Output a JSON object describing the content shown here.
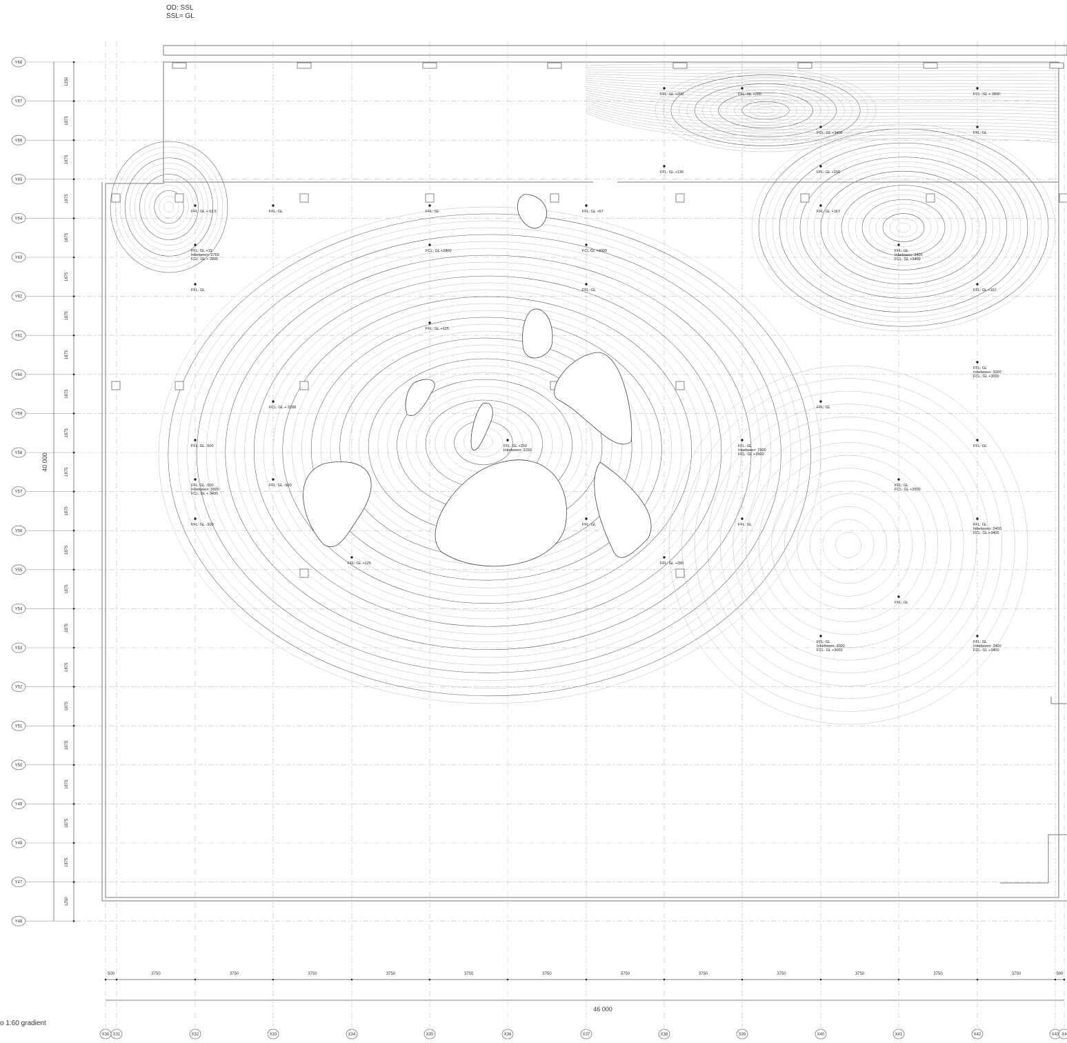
{
  "notes": {
    "line1": "OD: SSL",
    "line2": "SSL= GL"
  },
  "footnote": "o 1:60 gradient",
  "axes": {
    "y_labels": [
      "Y68",
      "Y67",
      "Y66",
      "Y65",
      "Y64",
      "Y63",
      "Y62",
      "Y61",
      "Y60",
      "Y59",
      "Y58",
      "Y57",
      "Y56",
      "Y55",
      "Y54",
      "Y53",
      "Y52",
      "Y51",
      "Y50",
      "Y49",
      "Y48",
      "Y47",
      "Y46"
    ],
    "x_labels": [
      "X30",
      "X31",
      "X32",
      "X33",
      "X34",
      "X35",
      "X36",
      "X37",
      "X38",
      "X39",
      "X40",
      "X41",
      "X42",
      "X43",
      "X4"
    ]
  },
  "dimensions": {
    "vertical_segments": [
      "1250",
      "1875",
      "1875",
      "1875",
      "1875",
      "1875",
      "1875",
      "1875",
      "1875",
      "1875",
      "1875",
      "1875",
      "1875",
      "1875",
      "1875",
      "1875",
      "1875",
      "1875",
      "1875",
      "1875",
      "1875",
      "1250"
    ],
    "vertical_total": "40 000",
    "horizontal_segments": [
      "500",
      "3750",
      "3750",
      "3750",
      "3750",
      "3750",
      "3750",
      "3750",
      "3750",
      "3750",
      "3750",
      "3750",
      "3750",
      "500"
    ],
    "horizontal_total": "46 000"
  },
  "annotations": [
    {
      "lines": [
        "FFL: GL +200"
      ]
    },
    {
      "lines": [
        "FFL: GL +200"
      ]
    },
    {
      "lines": [
        "FCL: GL + 2800"
      ]
    },
    {
      "lines": [
        "FCL: GL +3400"
      ]
    },
    {
      "lines": [
        "FFL: GL"
      ]
    },
    {
      "lines": [
        "FFL: GL +136"
      ]
    },
    {
      "lines": [
        "FFL: GL +200"
      ]
    },
    {
      "lines": [
        "FFL: GL + 62.5"
      ]
    },
    {
      "lines": [
        "FFL: GL"
      ]
    },
    {
      "lines": [
        "FFL: GL"
      ]
    },
    {
      "lines": [
        "FFL: GL +67"
      ]
    },
    {
      "lines": [
        "FFL: GL +167"
      ]
    },
    {
      "lines": [
        "FFL: GL +31",
        "Inbetween: 2769",
        "FCL: GL + 2800"
      ]
    },
    {
      "lines": [
        "FCL: GL +2800"
      ]
    },
    {
      "lines": [
        "FCL:GL +3000"
      ]
    },
    {
      "lines": [
        "FFL: GL",
        "Inbetween: 3400",
        "FCL: GL +3400"
      ]
    },
    {
      "lines": [
        "FFL: GL"
      ]
    },
    {
      "lines": [
        "FFL: GL"
      ]
    },
    {
      "lines": [
        "FFL: GL +167"
      ]
    },
    {
      "lines": [
        "FFL: GL +125"
      ]
    },
    {
      "lines": [
        "FFL: GL",
        "Inbetween: 3000",
        "FCL: GL +3000"
      ]
    },
    {
      "lines": [
        "FCL: GL + 3288"
      ]
    },
    {
      "lines": [
        "FFL: GL"
      ]
    },
    {
      "lines": [
        "FFL: GL -500"
      ]
    },
    {
      "lines": [
        "FFL: GL +250",
        "Inbetween: 3150"
      ]
    },
    {
      "lines": [
        "FFL: GL",
        "Inbetween: 2500",
        "FCL: GL +2500"
      ]
    },
    {
      "lines": [
        "FFL: GL"
      ]
    },
    {
      "lines": [
        "FFL: GL -500",
        "Inbetween: 3900",
        "FCL: GL + 3400"
      ]
    },
    {
      "lines": [
        "FFL: GL -500"
      ]
    },
    {
      "lines": [
        "FFL: GL",
        "FCL: GL +2500"
      ]
    },
    {
      "lines": [
        "FFL: GL -500"
      ]
    },
    {
      "lines": [
        "FFL: GL"
      ]
    },
    {
      "lines": [
        "FFL: GL"
      ]
    },
    {
      "lines": [
        "FFL: GL",
        "Inbetween: 3400",
        "FCL: GL +3400"
      ]
    },
    {
      "lines": [
        "FFL: GL +125"
      ]
    },
    {
      "lines": [
        "FFL: GL +250"
      ]
    },
    {
      "lines": [
        "FFL: GL"
      ]
    },
    {
      "lines": [
        "FFL: GL",
        "Inbetween: 3000",
        "FCL: GL +3000"
      ]
    },
    {
      "lines": [
        "FFL: GL",
        "Inbetween: 3400",
        "FCL: GL +3400"
      ]
    }
  ]
}
